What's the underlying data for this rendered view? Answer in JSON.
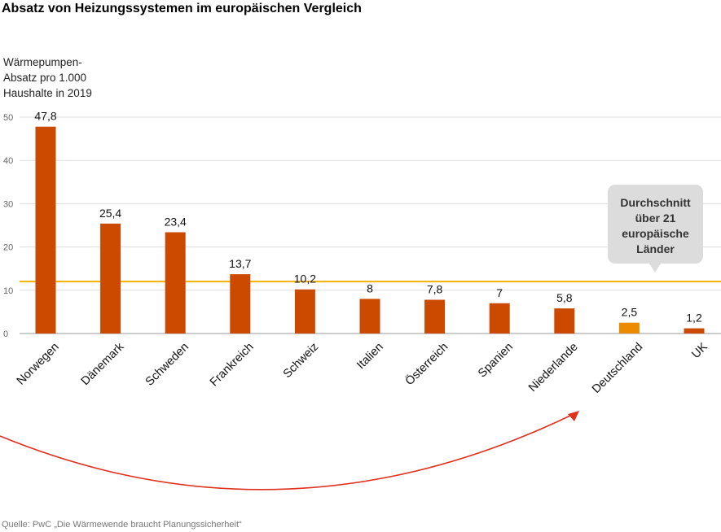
{
  "chart_data": {
    "type": "bar",
    "title": "Absatz von Heizungssystemen im europäischen Vergleich",
    "ylabel_lines": [
      "Wärmepumpen-",
      "Absatz pro 1.000",
      "Haushalte in 2019"
    ],
    "xlabel": "",
    "ylim": [
      0,
      50
    ],
    "yticks": [
      0,
      10,
      20,
      30,
      40,
      50
    ],
    "grid": true,
    "categories": [
      "Norwegen",
      "Dänemark",
      "Schweden",
      "Frankreich",
      "Schweiz",
      "Italien",
      "Österreich",
      "Spanien",
      "Niederlande",
      "Deutschland",
      "UK"
    ],
    "values": [
      47.8,
      25.4,
      23.4,
      13.7,
      10.2,
      8,
      7.8,
      7,
      5.8,
      2.5,
      1.2
    ],
    "value_labels": [
      "47,8",
      "25,4",
      "23,4",
      "13,7",
      "10,2",
      "8",
      "7,8",
      "7",
      "5,8",
      "2,5",
      "1,2"
    ],
    "highlight_category": "Deutschland",
    "average_line": {
      "value": 12,
      "label_lines": [
        "Durchschnitt",
        "über 21",
        "europäische",
        "Länder"
      ]
    },
    "annotations": [
      "curved arrow pointing to Deutschland"
    ],
    "source": "Quelle: PwC „Die Wärmewende braucht Planungssicherheit“"
  },
  "colors": {
    "bar": "#cc4a00",
    "highlight": "#eb8c00",
    "average_line": "#f3b100",
    "arrow": "#e0301e",
    "grid": "#dddddd",
    "callout_bg": "#dcdcdc"
  }
}
